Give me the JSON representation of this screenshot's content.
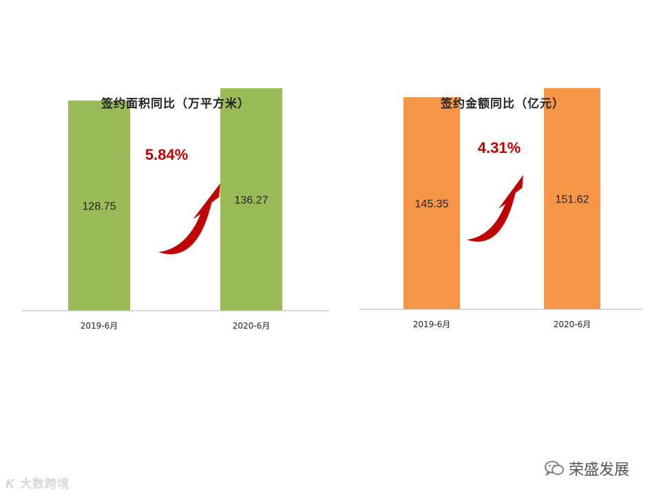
{
  "chart_data": [
    {
      "type": "bar",
      "title": "签约面积同比（万平方米）",
      "categories": [
        "2019-6月",
        "2020-6月"
      ],
      "values": [
        128.75,
        136.27
      ],
      "value_labels": [
        "128.75",
        "136.27"
      ],
      "growth_label": "5.84%",
      "bar_color": "#9bbb59",
      "arrow_color": "#c00000",
      "ylim": [
        0,
        165
      ]
    },
    {
      "type": "bar",
      "title": "签约金额同比（亿元）",
      "categories": [
        "2019-6月",
        "2020-6月"
      ],
      "values": [
        145.35,
        151.62
      ],
      "value_labels": [
        "145.35",
        "151.62"
      ],
      "growth_label": "4.31%",
      "bar_color": "#f79646",
      "arrow_color": "#c00000",
      "ylim": [
        0,
        160
      ]
    }
  ],
  "watermark": {
    "left_text": "大数跨境",
    "right_text": "荣盛发展",
    "right_icon": "wechat-icon"
  }
}
